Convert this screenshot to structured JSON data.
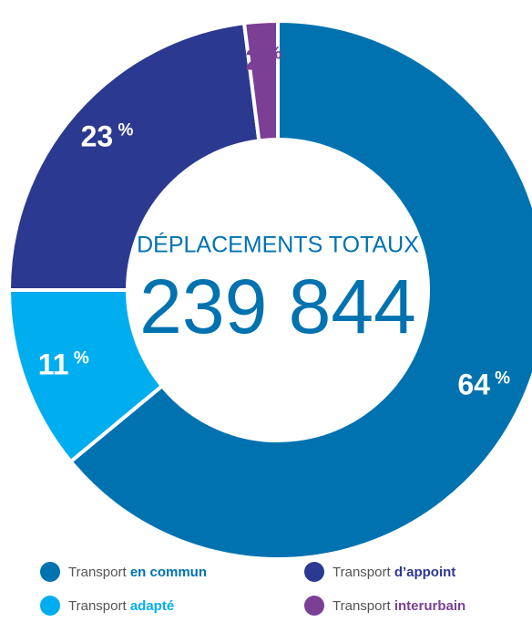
{
  "chart_data": {
    "type": "donut",
    "title": "DÉPLACEMENTS TOTAUX",
    "subtitle": "239 844",
    "categories": [
      "Transport en commun",
      "Transport adapté",
      "Transport d’appoint",
      "Transport interurbain"
    ],
    "values": [
      64,
      11,
      23,
      2
    ],
    "value_labels": [
      "64 %",
      "11 %",
      "23 %",
      "2 %"
    ],
    "colors": [
      "#0072b0",
      "#00aeef",
      "#2b3990",
      "#7b3f96"
    ],
    "legend": "bottom"
  }
}
